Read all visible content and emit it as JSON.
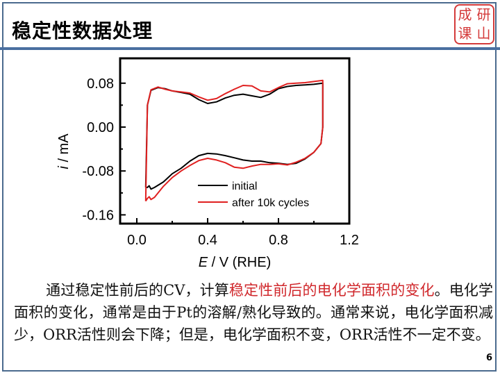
{
  "slide": {
    "title": "稳定性数据处理",
    "seal_chars": [
      "成",
      "研",
      "课",
      "山"
    ],
    "page_number": "6",
    "colors": {
      "accent": "#4a6fa0",
      "highlight": "#d0282c",
      "seal": "#d43a3a"
    }
  },
  "paragraph": {
    "part1": "通过稳定性前后的CV，计算",
    "highlight": "稳定性前后的电化学面积的变化",
    "part2": "。电化学面积的变化，通常是由于Pt的溶解/熟化导致的。通常来说，电化学面积减少，ORR活性则会下降；但是，电化学面积不变，ORR活性不一定不变。"
  },
  "chart_data": {
    "type": "line",
    "title": "",
    "xlabel": "E / V (RHE)",
    "ylabel": "i / mA",
    "xlim": [
      -0.1,
      1.2
    ],
    "ylim": [
      -0.175,
      0.125
    ],
    "xticks": [
      "0.0",
      "0.4",
      "0.8",
      "1.2"
    ],
    "yticks": [
      "0.08",
      "0.00",
      "-0.08",
      "-0.16"
    ],
    "grid": false,
    "legend_position": "lower center inside",
    "series": [
      {
        "name": "initial",
        "color": "#000000",
        "x": [
          0.05,
          0.06,
          0.08,
          0.12,
          0.16,
          0.2,
          0.25,
          0.3,
          0.35,
          0.4,
          0.45,
          0.5,
          0.55,
          0.6,
          0.65,
          0.7,
          0.75,
          0.8,
          0.85,
          0.9,
          0.95,
          1.0,
          1.05,
          1.05,
          1.04,
          1.0,
          0.95,
          0.9,
          0.85,
          0.8,
          0.75,
          0.7,
          0.65,
          0.6,
          0.55,
          0.5,
          0.45,
          0.4,
          0.35,
          0.3,
          0.25,
          0.2,
          0.15,
          0.1,
          0.08,
          0.07,
          0.06,
          0.05
        ],
        "y": [
          -0.11,
          0.04,
          0.067,
          0.072,
          0.07,
          0.066,
          0.063,
          0.06,
          0.05,
          0.043,
          0.046,
          0.053,
          0.058,
          0.06,
          0.057,
          0.054,
          0.06,
          0.07,
          0.074,
          0.076,
          0.077,
          0.078,
          0.08,
          0.0,
          -0.03,
          -0.046,
          -0.058,
          -0.066,
          -0.068,
          -0.066,
          -0.065,
          -0.062,
          -0.062,
          -0.06,
          -0.056,
          -0.052,
          -0.049,
          -0.048,
          -0.052,
          -0.062,
          -0.075,
          -0.085,
          -0.1,
          -0.11,
          -0.113,
          -0.107,
          -0.11,
          -0.11
        ]
      },
      {
        "name": "after 10k cycles",
        "color": "#e02020",
        "x": [
          0.05,
          0.06,
          0.08,
          0.12,
          0.16,
          0.2,
          0.25,
          0.3,
          0.35,
          0.4,
          0.45,
          0.5,
          0.55,
          0.6,
          0.65,
          0.7,
          0.75,
          0.8,
          0.85,
          0.9,
          0.95,
          1.0,
          1.05,
          1.05,
          1.04,
          1.0,
          0.95,
          0.9,
          0.85,
          0.8,
          0.75,
          0.7,
          0.65,
          0.6,
          0.55,
          0.5,
          0.45,
          0.4,
          0.35,
          0.3,
          0.25,
          0.2,
          0.15,
          0.1,
          0.08,
          0.07,
          0.06,
          0.05
        ],
        "y": [
          -0.135,
          0.04,
          0.068,
          0.073,
          0.069,
          0.066,
          0.064,
          0.062,
          0.055,
          0.049,
          0.052,
          0.061,
          0.069,
          0.076,
          0.075,
          0.066,
          0.064,
          0.072,
          0.079,
          0.08,
          0.081,
          0.083,
          0.085,
          0.0,
          -0.03,
          -0.046,
          -0.057,
          -0.064,
          -0.069,
          -0.067,
          -0.068,
          -0.068,
          -0.071,
          -0.075,
          -0.073,
          -0.065,
          -0.06,
          -0.057,
          -0.061,
          -0.07,
          -0.08,
          -0.092,
          -0.108,
          -0.128,
          -0.132,
          -0.127,
          -0.13,
          -0.135
        ]
      }
    ]
  }
}
